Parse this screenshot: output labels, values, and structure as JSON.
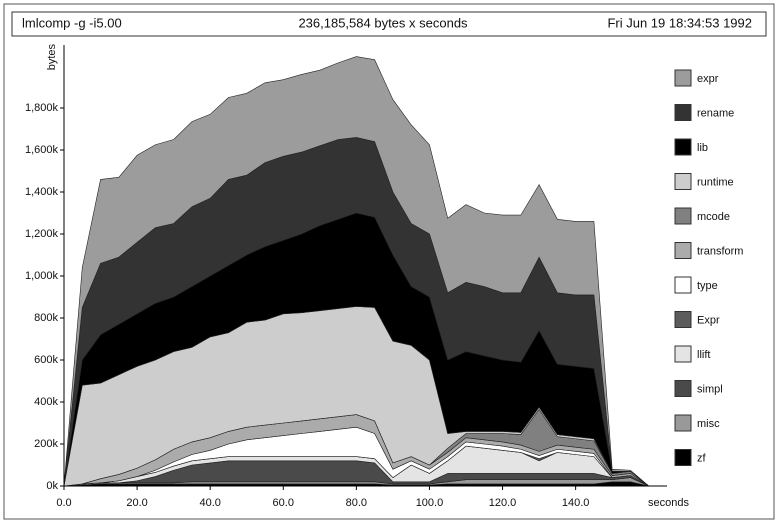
{
  "chart_data": {
    "type": "stacked-area",
    "title": "lmlcomp -g -i5.00",
    "subtitle": "236,185,584 bytes x seconds",
    "date": "Fri Jun 19 18:34:53 1992",
    "y_label": "bytes",
    "x_label": "seconds",
    "xlim": [
      0,
      165
    ],
    "ylim": [
      0,
      2100
    ],
    "xticks": [
      {
        "value": 0,
        "label": "0.0"
      },
      {
        "value": 20,
        "label": "20.0"
      },
      {
        "value": 40,
        "label": "40.0"
      },
      {
        "value": 60,
        "label": "60.0"
      },
      {
        "value": 80,
        "label": "80.0"
      },
      {
        "value": 100,
        "label": "100.0"
      },
      {
        "value": 120,
        "label": "120.0"
      },
      {
        "value": 140,
        "label": "140.0"
      }
    ],
    "yticks": [
      {
        "value": 0,
        "label": "0k"
      },
      {
        "value": 200,
        "label": "200k"
      },
      {
        "value": 400,
        "label": "400k"
      },
      {
        "value": 600,
        "label": "600k"
      },
      {
        "value": 800,
        "label": "800k"
      },
      {
        "value": 1000,
        "label": "1,000k"
      },
      {
        "value": 1200,
        "label": "1,200k"
      },
      {
        "value": 1400,
        "label": "1,400k"
      },
      {
        "value": 1600,
        "label": "1,600k"
      },
      {
        "value": 1800,
        "label": "1,800k"
      }
    ],
    "x": [
      0,
      5,
      10,
      15,
      20,
      25,
      30,
      35,
      40,
      45,
      50,
      55,
      60,
      65,
      70,
      75,
      80,
      85,
      90,
      95,
      100,
      105,
      110,
      115,
      120,
      125,
      130,
      135,
      140,
      145,
      150,
      155,
      160
    ],
    "series": [
      {
        "name": "expr",
        "color": "#9c9c9c",
        "values": [
          0,
          190,
          400,
          380,
          415,
          395,
          400,
          405,
          400,
          390,
          390,
          380,
          365,
          370,
          360,
          365,
          385,
          390,
          440,
          470,
          425,
          355,
          370,
          350,
          370,
          370,
          345,
          350,
          350,
          350,
          10,
          5,
          0
        ]
      },
      {
        "name": "rename",
        "color": "#333333",
        "values": [
          0,
          250,
          340,
          320,
          340,
          360,
          350,
          380,
          370,
          410,
          380,
          400,
          400,
          390,
          380,
          380,
          360,
          360,
          300,
          300,
          300,
          320,
          330,
          330,
          320,
          330,
          350,
          340,
          340,
          350,
          0,
          0,
          0
        ]
      },
      {
        "name": "lib",
        "color": "#000000",
        "values": [
          0,
          120,
          230,
          240,
          250,
          270,
          260,
          290,
          290,
          320,
          320,
          350,
          350,
          375,
          405,
          425,
          445,
          430,
          410,
          280,
          300,
          350,
          380,
          360,
          340,
          335,
          365,
          335,
          335,
          335,
          10,
          0,
          0
        ]
      },
      {
        "name": "runtime",
        "color": "#cdcdcd",
        "values": [
          0,
          470,
          455,
          475,
          485,
          475,
          465,
          450,
          480,
          470,
          500,
          500,
          520,
          515,
          515,
          515,
          515,
          540,
          580,
          530,
          500,
          70,
          10,
          10,
          10,
          10,
          10,
          10,
          10,
          10,
          0,
          0,
          0
        ]
      },
      {
        "name": "mcode",
        "color": "#808080",
        "values": [
          0,
          0,
          0,
          0,
          0,
          0,
          0,
          0,
          0,
          0,
          0,
          0,
          0,
          0,
          0,
          0,
          0,
          0,
          0,
          0,
          0,
          20,
          20,
          30,
          40,
          50,
          200,
          40,
          40,
          40,
          10,
          10,
          0
        ]
      },
      {
        "name": "transform",
        "color": "#ababab",
        "values": [
          0,
          0,
          20,
          30,
          40,
          50,
          60,
          60,
          60,
          60,
          60,
          60,
          60,
          60,
          60,
          60,
          60,
          60,
          30,
          20,
          20,
          20,
          20,
          20,
          20,
          20,
          20,
          20,
          20,
          20,
          10,
          10,
          0
        ]
      },
      {
        "name": "type",
        "color": "#ffffff",
        "values": [
          0,
          0,
          0,
          0,
          0,
          10,
          20,
          30,
          40,
          60,
          80,
          90,
          100,
          110,
          120,
          130,
          140,
          120,
          40,
          20,
          20,
          20,
          20,
          20,
          20,
          15,
          15,
          15,
          15,
          15,
          0,
          0,
          0
        ]
      },
      {
        "name": "Expr",
        "color": "#5c5c5c",
        "values": [
          0,
          0,
          0,
          0,
          0,
          0,
          0,
          0,
          0,
          0,
          0,
          0,
          0,
          0,
          0,
          0,
          0,
          0,
          0,
          0,
          0,
          0,
          0,
          0,
          0,
          0,
          10,
          0,
          0,
          0,
          0,
          0,
          0
        ]
      },
      {
        "name": "llift",
        "color": "#e4e4e4",
        "values": [
          0,
          0,
          0,
          10,
          20,
          20,
          20,
          20,
          20,
          20,
          20,
          20,
          20,
          20,
          20,
          20,
          20,
          20,
          20,
          80,
          40,
          60,
          130,
          120,
          110,
          100,
          60,
          100,
          90,
          80,
          0,
          0,
          0
        ]
      },
      {
        "name": "simpl",
        "color": "#4a4a4a",
        "values": [
          0,
          0,
          0,
          0,
          10,
          30,
          60,
          80,
          90,
          100,
          100,
          100,
          100,
          100,
          100,
          100,
          100,
          90,
          10,
          10,
          10,
          40,
          30,
          30,
          30,
          30,
          30,
          30,
          30,
          30,
          10,
          10,
          0
        ]
      },
      {
        "name": "misc",
        "color": "#999999",
        "values": [
          0,
          5,
          5,
          5,
          5,
          5,
          5,
          10,
          10,
          10,
          10,
          10,
          10,
          10,
          10,
          10,
          10,
          10,
          5,
          5,
          5,
          10,
          20,
          20,
          20,
          20,
          20,
          20,
          20,
          20,
          10,
          20,
          0
        ]
      },
      {
        "name": "zf",
        "color": "#000000",
        "values": [
          0,
          5,
          10,
          10,
          10,
          10,
          10,
          10,
          10,
          10,
          10,
          10,
          10,
          10,
          10,
          10,
          10,
          10,
          5,
          5,
          5,
          10,
          10,
          10,
          10,
          10,
          10,
          10,
          10,
          10,
          20,
          20,
          0
        ]
      }
    ]
  }
}
